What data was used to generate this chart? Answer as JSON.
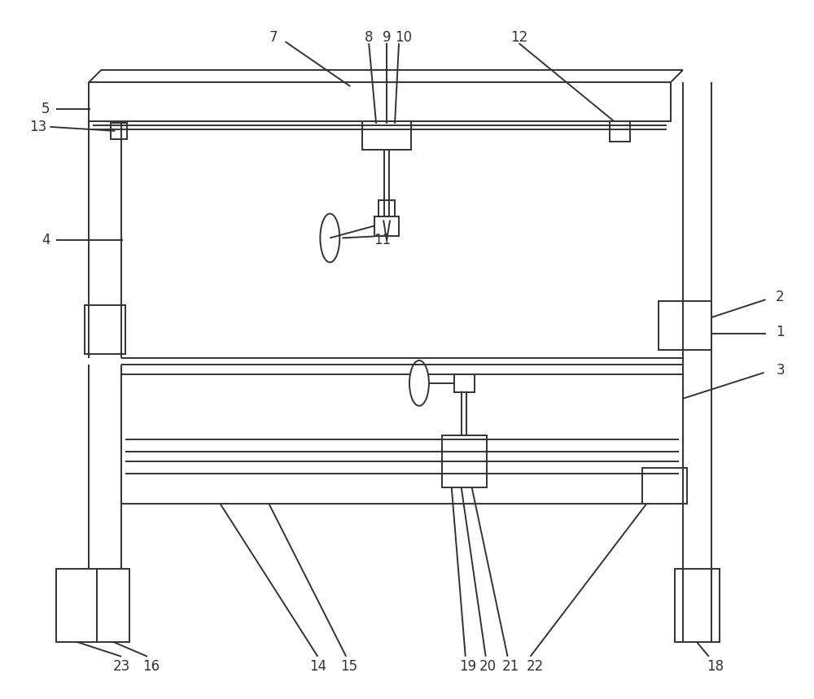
{
  "bg_color": "#ffffff",
  "line_color": "#333333",
  "line_width": 1.4,
  "fig_width": 10.0,
  "fig_height": 8.59
}
